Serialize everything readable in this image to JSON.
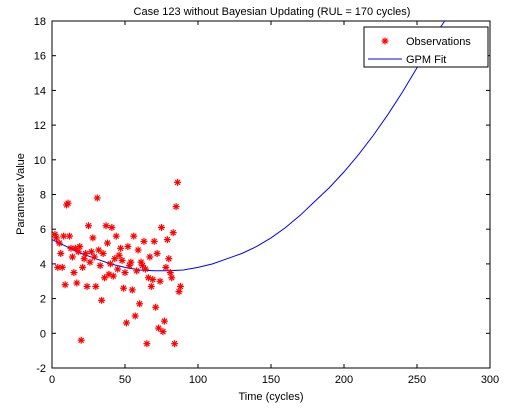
{
  "chart_data": {
    "type": "scatter",
    "title": "Case 123 without Bayesian Updating (RUL = 170 cycles)",
    "xlabel": "Time (cycles)",
    "ylabel": "Parameter Value",
    "xlim": [
      0,
      300
    ],
    "ylim": [
      -2,
      18
    ],
    "xticks": [
      0,
      50,
      100,
      150,
      200,
      250,
      300
    ],
    "yticks": [
      -2,
      0,
      2,
      4,
      6,
      8,
      10,
      12,
      14,
      16,
      18
    ],
    "grid": false,
    "legend_position": "top-right",
    "series": [
      {
        "name": "Observations",
        "type": "scatter",
        "marker": "asterisk",
        "color": "#ff0000",
        "points": [
          [
            2,
            5.7
          ],
          [
            3,
            5.5
          ],
          [
            4,
            3.8
          ],
          [
            5,
            5.2
          ],
          [
            6,
            4.6
          ],
          [
            7,
            3.8
          ],
          [
            8,
            5.6
          ],
          [
            9,
            2.8
          ],
          [
            10,
            7.4
          ],
          [
            11,
            7.5
          ],
          [
            12,
            5.6
          ],
          [
            13,
            4.9
          ],
          [
            14,
            4.4
          ],
          [
            15,
            3.5
          ],
          [
            16,
            4.9
          ],
          [
            17,
            2.9
          ],
          [
            18,
            4.7
          ],
          [
            19,
            5.0
          ],
          [
            20,
            -0.4
          ],
          [
            21,
            3.8
          ],
          [
            22,
            4.3
          ],
          [
            23,
            4.6
          ],
          [
            24,
            2.7
          ],
          [
            25,
            6.2
          ],
          [
            26,
            4.1
          ],
          [
            27,
            4.7
          ],
          [
            28,
            5.5
          ],
          [
            29,
            4.4
          ],
          [
            30,
            2.7
          ],
          [
            31,
            7.8
          ],
          [
            32,
            4.8
          ],
          [
            33,
            3.9
          ],
          [
            34,
            1.9
          ],
          [
            35,
            4.6
          ],
          [
            36,
            3.2
          ],
          [
            37,
            6.2
          ],
          [
            38,
            5.2
          ],
          [
            39,
            3.4
          ],
          [
            40,
            4.0
          ],
          [
            41,
            6.1
          ],
          [
            42,
            3.3
          ],
          [
            43,
            4.3
          ],
          [
            44,
            5.6
          ],
          [
            45,
            3.7
          ],
          [
            46,
            4.5
          ],
          [
            47,
            4.9
          ],
          [
            48,
            4.2
          ],
          [
            49,
            2.6
          ],
          [
            50,
            3.5
          ],
          [
            51,
            0.6
          ],
          [
            52,
            5.0
          ],
          [
            53,
            3.9
          ],
          [
            54,
            4.1
          ],
          [
            55,
            2.5
          ],
          [
            56,
            5.6
          ],
          [
            57,
            1.0
          ],
          [
            58,
            3.6
          ],
          [
            59,
            4.8
          ],
          [
            60,
            1.7
          ],
          [
            61,
            4.1
          ],
          [
            62,
            3.9
          ],
          [
            63,
            5.3
          ],
          [
            64,
            3.7
          ],
          [
            65,
            -0.6
          ],
          [
            66,
            3.2
          ],
          [
            67,
            4.4
          ],
          [
            68,
            2.7
          ],
          [
            69,
            3.1
          ],
          [
            70,
            5.3
          ],
          [
            71,
            1.5
          ],
          [
            72,
            4.6
          ],
          [
            73,
            0.3
          ],
          [
            74,
            3.0
          ],
          [
            75,
            6.1
          ],
          [
            76,
            0.1
          ],
          [
            77,
            0.7
          ],
          [
            78,
            3.8
          ],
          [
            79,
            5.4
          ],
          [
            80,
            4.3
          ],
          [
            81,
            3.5
          ],
          [
            82,
            3.2
          ],
          [
            83,
            5.8
          ],
          [
            84,
            -0.6
          ],
          [
            85,
            7.3
          ],
          [
            86,
            8.7
          ],
          [
            87,
            2.4
          ],
          [
            88,
            2.7
          ]
        ]
      },
      {
        "name": "GPM Fit",
        "type": "line",
        "color": "#0000ff",
        "points": [
          [
            0,
            5.4
          ],
          [
            10,
            5.0
          ],
          [
            20,
            4.6
          ],
          [
            30,
            4.3
          ],
          [
            40,
            4.0
          ],
          [
            50,
            3.8
          ],
          [
            60,
            3.65
          ],
          [
            70,
            3.6
          ],
          [
            80,
            3.6
          ],
          [
            90,
            3.65
          ],
          [
            100,
            3.8
          ],
          [
            110,
            4.0
          ],
          [
            120,
            4.3
          ],
          [
            130,
            4.6
          ],
          [
            140,
            5.0
          ],
          [
            150,
            5.5
          ],
          [
            160,
            6.1
          ],
          [
            170,
            6.8
          ],
          [
            180,
            7.6
          ],
          [
            190,
            8.4
          ],
          [
            200,
            9.3
          ],
          [
            210,
            10.3
          ],
          [
            220,
            11.4
          ],
          [
            230,
            12.6
          ],
          [
            240,
            13.9
          ],
          [
            250,
            15.3
          ],
          [
            260,
            16.9
          ],
          [
            269,
            18.0
          ]
        ]
      }
    ]
  }
}
